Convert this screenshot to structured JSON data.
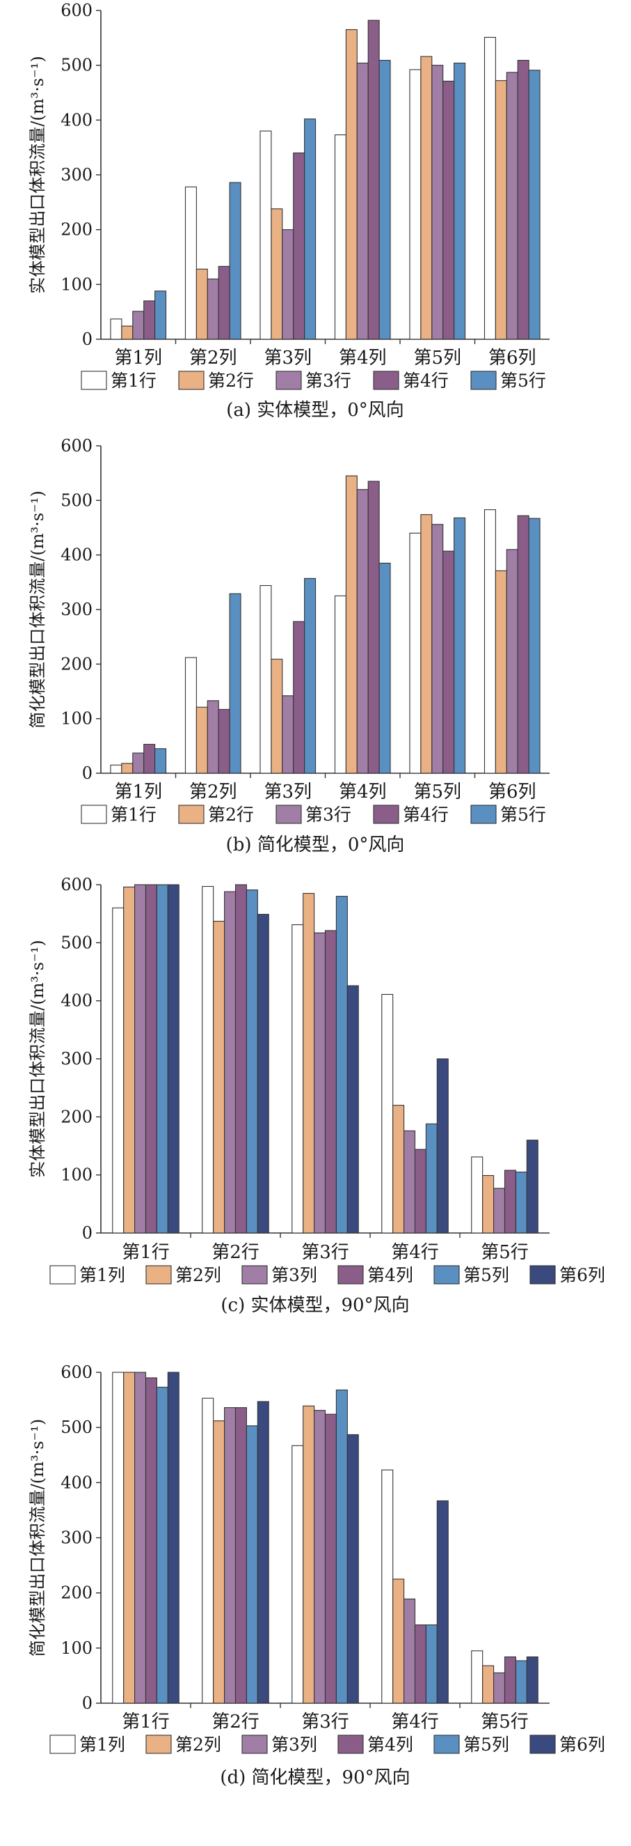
{
  "chart_data": [
    {
      "type": "bar",
      "title": "(a) 实体模型，0°风向",
      "ylabel": "实体模型出口体积流量/(m³·s⁻¹)",
      "categories": [
        "第1列",
        "第2列",
        "第3列",
        "第4列",
        "第5列",
        "第6列"
      ],
      "ylim": [
        0,
        600
      ],
      "yticks": [
        "0",
        "100",
        "200",
        "300",
        "400",
        "500",
        "600"
      ],
      "legend": "bottom",
      "grid": false,
      "series": [
        {
          "name": "第1行",
          "color": "#ffffff",
          "values": [
            37,
            278,
            380,
            373,
            492,
            551
          ]
        },
        {
          "name": "第2行",
          "color": "#eab184",
          "values": [
            24,
            128,
            238,
            565,
            516,
            472
          ]
        },
        {
          "name": "第3行",
          "color": "#a07ea6",
          "values": [
            51,
            110,
            200,
            504,
            500,
            487
          ]
        },
        {
          "name": "第4行",
          "color": "#8b5e8a",
          "values": [
            70,
            133,
            340,
            582,
            471,
            509
          ]
        },
        {
          "name": "第5行",
          "color": "#5a8fc2",
          "values": [
            88,
            286,
            402,
            509,
            504,
            491
          ]
        }
      ]
    },
    {
      "type": "bar",
      "title": "(b) 简化模型，0°风向",
      "ylabel": "简化模型出口体积流量/(m³·s⁻¹)",
      "categories": [
        "第1列",
        "第2列",
        "第3列",
        "第4列",
        "第5列",
        "第6列"
      ],
      "ylim": [
        0,
        600
      ],
      "yticks": [
        "0",
        "100",
        "200",
        "300",
        "400",
        "500",
        "600"
      ],
      "legend": "bottom",
      "grid": false,
      "series": [
        {
          "name": "第1行",
          "color": "#ffffff",
          "values": [
            15,
            212,
            344,
            325,
            440,
            483
          ]
        },
        {
          "name": "第2行",
          "color": "#eab184",
          "values": [
            18,
            121,
            209,
            545,
            474,
            371
          ]
        },
        {
          "name": "第3行",
          "color": "#a07ea6",
          "values": [
            37,
            133,
            142,
            520,
            456,
            410
          ]
        },
        {
          "name": "第4行",
          "color": "#8b5e8a",
          "values": [
            53,
            117,
            278,
            535,
            407,
            472
          ]
        },
        {
          "name": "第5行",
          "color": "#5a8fc2",
          "values": [
            45,
            329,
            357,
            385,
            468,
            467
          ]
        }
      ]
    },
    {
      "type": "bar",
      "title": "(c) 实体模型，90°风向",
      "ylabel": "实体模型出口体积流量/(m³·s⁻¹)",
      "categories": [
        "第1行",
        "第2行",
        "第3行",
        "第4行",
        "第5行"
      ],
      "ylim": [
        0,
        600
      ],
      "yticks": [
        "0",
        "100",
        "200",
        "300",
        "400",
        "500",
        "600"
      ],
      "legend": "bottom",
      "grid": false,
      "series": [
        {
          "name": "第1列",
          "color": "#ffffff",
          "values": [
            560,
            597,
            531,
            411,
            131
          ]
        },
        {
          "name": "第2列",
          "color": "#eab184",
          "values": [
            596,
            537,
            585,
            220,
            99
          ]
        },
        {
          "name": "第3列",
          "color": "#a07ea6",
          "values": [
            600,
            588,
            517,
            176,
            77
          ]
        },
        {
          "name": "第4列",
          "color": "#8b5e8a",
          "values": [
            600,
            600,
            521,
            144,
            108
          ]
        },
        {
          "name": "第5列",
          "color": "#5a8fc2",
          "values": [
            600,
            591,
            580,
            188,
            105
          ]
        },
        {
          "name": "第6列",
          "color": "#3b4a7e",
          "values": [
            600,
            549,
            426,
            300,
            160
          ]
        }
      ]
    },
    {
      "type": "bar",
      "title": "(d) 简化模型，90°风向",
      "ylabel": "简化模型出口体积流量/(m³·s⁻¹)",
      "categories": [
        "第1行",
        "第2行",
        "第3行",
        "第4行",
        "第5行"
      ],
      "ylim": [
        0,
        600
      ],
      "yticks": [
        "0",
        "100",
        "200",
        "300",
        "400",
        "500",
        "600"
      ],
      "legend": "bottom",
      "grid": false,
      "series": [
        {
          "name": "第1列",
          "color": "#ffffff",
          "values": [
            600,
            553,
            467,
            423,
            95
          ]
        },
        {
          "name": "第2列",
          "color": "#eab184",
          "values": [
            600,
            512,
            539,
            225,
            68
          ]
        },
        {
          "name": "第3列",
          "color": "#a07ea6",
          "values": [
            600,
            536,
            531,
            189,
            55
          ]
        },
        {
          "name": "第4列",
          "color": "#8b5e8a",
          "values": [
            590,
            536,
            524,
            142,
            84
          ]
        },
        {
          "name": "第5列",
          "color": "#5a8fc2",
          "values": [
            573,
            503,
            568,
            142,
            77
          ]
        },
        {
          "name": "第6列",
          "color": "#3b4a7e",
          "values": [
            600,
            547,
            487,
            367,
            84
          ]
        }
      ]
    }
  ]
}
